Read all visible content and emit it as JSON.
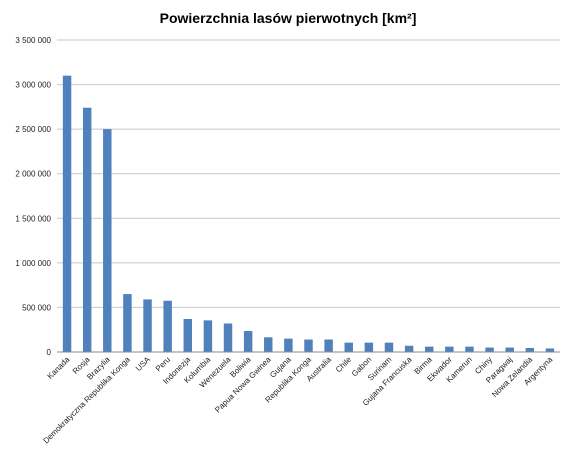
{
  "chart_data": {
    "type": "bar",
    "title": "Powierzchnia lasów pierwotnych [km²]",
    "xlabel": "",
    "ylabel": "",
    "ylim": [
      0,
      3500000
    ],
    "yticks": [
      0,
      500000,
      1000000,
      1500000,
      2000000,
      2500000,
      3000000,
      3500000
    ],
    "ytick_labels": [
      "0",
      "500 000",
      "1 000 000",
      "1 500 000",
      "2 000 000",
      "2 500 000",
      "3 000 000",
      "3 500 000"
    ],
    "grid": true,
    "legend": "none",
    "bar_color": "#4f81bd",
    "categories": [
      "Kanada",
      "Rosja",
      "Brazylia",
      "Demokratyczna Republika Konga",
      "USA",
      "Peru",
      "Indonezja",
      "Kolumbia",
      "Wenezuela",
      "Boliwia",
      "Papua Nowa Gwinea",
      "Gujana",
      "Republika Konga",
      "Australia",
      "Chile",
      "Gabon",
      "Surinam",
      "Gujana Francuska",
      "Birma",
      "Ekwador",
      "Kamerun",
      "Chiny",
      "Paragwaj",
      "Nowa Zelandia",
      "Argentyna"
    ],
    "values": [
      3100000,
      2740000,
      2500000,
      650000,
      590000,
      575000,
      370000,
      355000,
      320000,
      235000,
      165000,
      150000,
      140000,
      140000,
      105000,
      105000,
      105000,
      70000,
      60000,
      60000,
      60000,
      50000,
      50000,
      45000,
      40000
    ]
  }
}
